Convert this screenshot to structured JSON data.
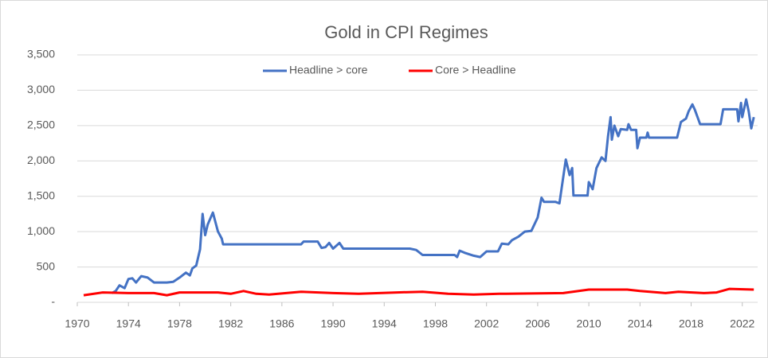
{
  "chart_data": {
    "type": "line",
    "title": "Gold in CPI Regimes",
    "xlim": [
      1970,
      2023.2
    ],
    "xticks": [
      1970,
      1974,
      1978,
      1982,
      1986,
      1990,
      1994,
      1998,
      2002,
      2006,
      2010,
      2014,
      2018,
      2022
    ],
    "ylim": [
      0,
      3500
    ],
    "yticks": [
      {
        "value": 0,
        "label": "-"
      },
      500,
      {
        "value": 1000,
        "label": "1,000"
      },
      {
        "value": 1500,
        "label": "1,500"
      },
      {
        "value": 2000,
        "label": "2,000"
      },
      {
        "value": 2500,
        "label": "2,500"
      },
      {
        "value": 3000,
        "label": "3,000"
      },
      {
        "value": 3500,
        "label": "3,500"
      }
    ],
    "grid": true,
    "legend": "top",
    "series": [
      {
        "name": "Headline > core",
        "color": "#4472c4",
        "x": [
          1972.7,
          1973,
          1973.3,
          1973.7,
          1974,
          1974.3,
          1974.6,
          1975,
          1975.5,
          1976,
          1977,
          1977.5,
          1978,
          1978.5,
          1978.8,
          1979,
          1979.3,
          1979.6,
          1979.8,
          1980,
          1980.2,
          1980.6,
          1981,
          1981.3,
          1981.4,
          1987.5,
          1987.7,
          1988.8,
          1989.1,
          1989.4,
          1989.7,
          1990,
          1990.5,
          1990.8,
          1996,
          1996.5,
          1997,
          1999.5,
          1999.7,
          1999.9,
          2000.3,
          2001,
          2001.5,
          2002,
          2002.9,
          2003.2,
          2003.7,
          2004,
          2004.5,
          2005,
          2005.5,
          2006,
          2006.3,
          2006.5,
          2007.4,
          2007.7,
          2008.2,
          2008.5,
          2008.7,
          2008.8,
          2009.9,
          2010,
          2010.3,
          2010.6,
          2011,
          2011.3,
          2011.5,
          2011.7,
          2011.8,
          2012,
          2012.3,
          2012.5,
          2013,
          2013.1,
          2013.3,
          2013.7,
          2013.8,
          2014,
          2014.5,
          2014.6,
          2014.7,
          2016.9,
          2017.2,
          2017.6,
          2017.8,
          2018.1,
          2018.3,
          2018.7,
          2020.3,
          2020.5,
          2021.6,
          2021.7,
          2021.9,
          2022,
          2022.3,
          2022.5,
          2022.7,
          2022.9
        ],
        "values": [
          130,
          160,
          240,
          200,
          330,
          340,
          280,
          370,
          350,
          280,
          280,
          290,
          350,
          420,
          380,
          480,
          520,
          750,
          1250,
          950,
          1100,
          1270,
          1000,
          900,
          820,
          820,
          860,
          860,
          770,
          780,
          840,
          760,
          840,
          760,
          760,
          740,
          670,
          670,
          640,
          730,
          700,
          660,
          640,
          720,
          720,
          830,
          820,
          880,
          930,
          1000,
          1010,
          1200,
          1480,
          1420,
          1420,
          1400,
          2020,
          1800,
          1900,
          1510,
          1510,
          1700,
          1600,
          1900,
          2050,
          2000,
          2350,
          2620,
          2300,
          2500,
          2350,
          2450,
          2440,
          2520,
          2440,
          2440,
          2180,
          2330,
          2330,
          2400,
          2330,
          2330,
          2550,
          2600,
          2700,
          2800,
          2720,
          2520,
          2520,
          2730,
          2730,
          2560,
          2820,
          2620,
          2870,
          2700,
          2460,
          2620
        ]
      },
      {
        "name": "Core > Headline",
        "color": "#ff0000",
        "x": [
          1970.5,
          1972,
          1974,
          1976,
          1977,
          1978,
          1981,
          1982,
          1983,
          1984,
          1985,
          1987.5,
          1990,
          1992,
          1995,
          1997,
          1999,
          2001,
          2003,
          2008,
          2010,
          2013,
          2014,
          2016,
          2017,
          2019,
          2020,
          2021,
          2022.9
        ],
        "values": [
          100,
          140,
          130,
          130,
          100,
          140,
          140,
          120,
          160,
          120,
          110,
          150,
          130,
          120,
          140,
          150,
          120,
          110,
          120,
          130,
          180,
          180,
          160,
          130,
          150,
          130,
          140,
          190,
          180
        ]
      }
    ]
  }
}
